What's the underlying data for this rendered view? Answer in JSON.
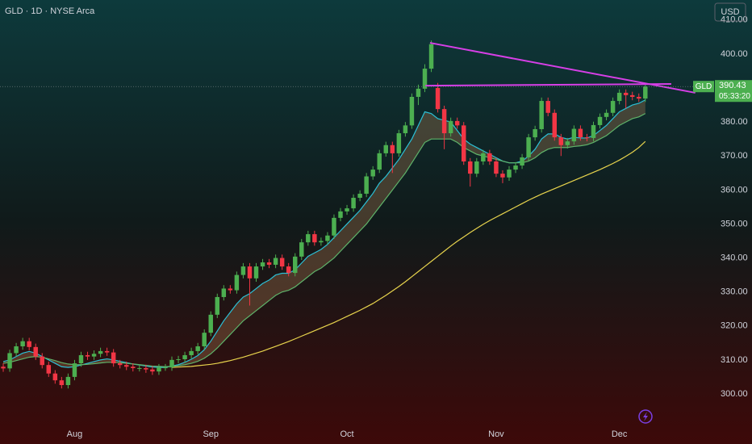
{
  "chart_data": {
    "type": "candlestick",
    "title": "GLD · 1D · NYSE Arca",
    "currency": "USD",
    "symbol_tag": "GLD",
    "countdown": "05:33:20",
    "categories": [
      null,
      null,
      null,
      null,
      null,
      null,
      null,
      null,
      null,
      null,
      null,
      "Aug",
      null,
      null,
      null,
      null,
      null,
      null,
      null,
      null,
      null,
      null,
      null,
      null,
      null,
      null,
      null,
      null,
      null,
      null,
      null,
      null,
      "Sep",
      null,
      null,
      null,
      null,
      null,
      null,
      null,
      null,
      null,
      null,
      null,
      null,
      null,
      null,
      null,
      null,
      null,
      null,
      null,
      null,
      "Oct",
      null,
      null,
      null,
      null,
      null,
      null,
      null,
      null,
      null,
      null,
      null,
      null,
      null,
      null,
      null,
      null,
      null,
      null,
      null,
      null,
      null,
      null,
      "Nov",
      null,
      null,
      null,
      null,
      null,
      null,
      null,
      null,
      null,
      null,
      null,
      null,
      null,
      null,
      null,
      null,
      null,
      null,
      "Dec",
      null,
      null,
      null,
      null
    ],
    "open": [
      308,
      307.5,
      312,
      314,
      315.5,
      313.8,
      311,
      308.5,
      306,
      304,
      302.6,
      305,
      309,
      311.4,
      311,
      311.8,
      312.6,
      312.2,
      309,
      308.5,
      308,
      307.6,
      307.6,
      307.2,
      306.6,
      307.8,
      307.8,
      310,
      310.2,
      311.4,
      312.6,
      314,
      318,
      323.3,
      328.5,
      331,
      330.5,
      335,
      337.5,
      334,
      337.5,
      338.7,
      338,
      340,
      337.5,
      335.6,
      340.4,
      344.6,
      347,
      344.6,
      345,
      346.6,
      351.8,
      353.7,
      354.6,
      357.7,
      358.9,
      364,
      366,
      370.8,
      373.2,
      370.8,
      376.7,
      379,
      387.4,
      389.8,
      395.7,
      390,
      383.8,
      376.7,
      380.3,
      379,
      368.4,
      364.8,
      368.4,
      370.8,
      368.4,
      364.8,
      363.7,
      366,
      367.2,
      369.6,
      375.5,
      377.9,
      386.2,
      382.7,
      375.5,
      373.2,
      374.3,
      378,
      375.5,
      375.3,
      379.1,
      381.5,
      382.7,
      386.2,
      388.6,
      387.9,
      387.4,
      386.9
    ],
    "high": [
      309,
      313,
      315,
      316.5,
      316.5,
      314.8,
      312,
      309.5,
      307,
      305,
      306,
      310,
      312.4,
      312.4,
      312.8,
      313.6,
      313.6,
      313.2,
      310,
      309.5,
      309,
      308.6,
      308.6,
      308.2,
      308.8,
      308.8,
      311,
      311.2,
      312.4,
      313.6,
      315,
      319,
      324.3,
      329.5,
      332,
      332,
      336,
      338.5,
      338.5,
      338.5,
      339.7,
      339.7,
      341,
      341,
      338.5,
      341.4,
      345.6,
      348,
      348,
      346,
      347.6,
      352.8,
      354.7,
      355.6,
      358.7,
      359.9,
      365,
      367,
      371.8,
      374.2,
      374.2,
      377.7,
      380,
      388.4,
      391,
      397,
      404,
      391.5,
      384.8,
      381.3,
      381.3,
      380,
      369.4,
      369.4,
      371.8,
      371.8,
      369.4,
      365.8,
      367,
      368.2,
      370.6,
      376.5,
      378.9,
      387.2,
      387.2,
      383.7,
      376.5,
      375.3,
      379,
      379,
      376.5,
      380.1,
      382.5,
      383.7,
      387.2,
      389.6,
      389.6,
      388.9,
      388.4,
      390.9
    ],
    "low": [
      306.5,
      306.5,
      311,
      313,
      312.8,
      310,
      307.5,
      305,
      303,
      301.6,
      301.6,
      304,
      308,
      310,
      310,
      310.8,
      311.2,
      308,
      307.5,
      307,
      306.6,
      306.6,
      306.2,
      305.6,
      305.6,
      306.8,
      306.8,
      309,
      309.2,
      310.4,
      311.6,
      313,
      317,
      322.3,
      327.5,
      329.5,
      329.5,
      334,
      326,
      333,
      336.5,
      337,
      337,
      336.5,
      334.6,
      334.6,
      339.4,
      343.6,
      343.6,
      343.6,
      344,
      345.6,
      350.8,
      352.7,
      353.6,
      356.7,
      357.9,
      363,
      365,
      369.8,
      365,
      369.8,
      375.7,
      378,
      385,
      388.8,
      394.7,
      382.8,
      372,
      375.7,
      378,
      367.4,
      361,
      363.8,
      367.4,
      367.4,
      363.8,
      362,
      362.7,
      365,
      366.2,
      368.6,
      374.5,
      376.9,
      381.7,
      374.5,
      370,
      372.2,
      373.3,
      374.5,
      374.3,
      374.3,
      378.1,
      380.5,
      381.7,
      385.2,
      384,
      386.4,
      385.9,
      385.9
    ],
    "close": [
      307.5,
      312,
      314,
      315.5,
      313.8,
      311,
      308.5,
      306,
      304,
      302.6,
      305,
      309,
      311.4,
      311,
      311.8,
      312.6,
      312.2,
      309,
      308.5,
      308,
      307.6,
      307.6,
      307.2,
      306.6,
      307.8,
      307.8,
      310,
      310.2,
      311.4,
      312.6,
      314,
      318,
      323.3,
      328.5,
      331,
      330.5,
      335,
      337.5,
      334,
      337.5,
      338.7,
      338,
      340,
      337.5,
      335.6,
      340.4,
      344.6,
      347,
      344.6,
      345,
      346.6,
      351.8,
      353.7,
      354.6,
      357.7,
      358.9,
      364,
      366,
      370.8,
      373.2,
      370.8,
      376.7,
      379,
      387.4,
      389.8,
      395.7,
      402.9,
      383.8,
      376.7,
      380.3,
      379,
      368.4,
      364.8,
      368.4,
      370.8,
      368.4,
      364.8,
      363.7,
      366,
      367.2,
      369.6,
      375.5,
      377.9,
      386.2,
      382.7,
      375.5,
      373.2,
      374.3,
      378,
      375.5,
      375.3,
      379.1,
      381.5,
      382.7,
      386.2,
      388.6,
      387.9,
      387.4,
      386.9,
      390.43
    ],
    "up_color": "#4caf50",
    "down_color": "#f23645",
    "lines": [
      {
        "color": "#2bc0d6",
        "values": [
          309.5,
          310,
          311,
          312,
          312.5,
          312,
          311,
          310,
          309,
          308,
          307.8,
          308,
          308.5,
          309,
          309.5,
          310,
          310.3,
          310,
          309.6,
          309.2,
          308.8,
          308.5,
          308.2,
          307.9,
          307.8,
          307.8,
          308.2,
          308.6,
          309.3,
          310.2,
          311.3,
          313,
          315.5,
          318.5,
          321.5,
          324,
          326.5,
          328.5,
          329.5,
          331,
          332.5,
          333.5,
          335,
          335.5,
          335.5,
          336.5,
          338.5,
          340.5,
          341.5,
          342.5,
          344,
          346,
          348,
          350,
          352,
          354,
          356.5,
          359,
          362,
          364,
          366.5,
          369,
          372,
          375,
          379,
          383,
          382.5,
          381,
          380.5,
          380,
          377.5,
          375,
          373.5,
          372.5,
          371.5,
          370.5,
          369.5,
          368.5,
          368,
          368,
          368.5,
          370,
          372,
          375,
          376.5,
          376.5,
          375.5,
          375,
          375.5,
          375.3,
          375.3,
          376,
          377.5,
          379,
          381,
          383,
          384,
          385,
          385.5,
          386.5
        ]
      },
      {
        "color": "#5fb36a",
        "values": [
          309,
          309.3,
          309.8,
          310.3,
          310.8,
          311,
          310.8,
          310.3,
          309.8,
          309.2,
          308.8,
          308.6,
          308.6,
          308.7,
          308.9,
          309.1,
          309.3,
          309.3,
          309.2,
          309,
          308.8,
          308.6,
          308.4,
          308.2,
          308.1,
          308,
          308.1,
          308.3,
          308.6,
          309,
          309.6,
          310.5,
          311.8,
          313.5,
          315.5,
          317.5,
          319.5,
          321.5,
          323,
          324.5,
          326,
          327.5,
          329,
          330,
          330.5,
          331.5,
          333,
          334.5,
          336,
          337,
          338.5,
          340,
          342,
          344,
          346,
          348,
          350,
          352.5,
          355,
          357.5,
          360,
          362.5,
          365,
          368,
          371,
          374,
          375,
          375,
          375,
          375,
          374,
          372.5,
          371.5,
          370.5,
          370,
          369.5,
          369,
          368.5,
          368,
          368,
          368,
          368.5,
          369.5,
          371,
          372,
          372.5,
          372.5,
          372.5,
          372.8,
          373,
          373.3,
          374,
          375,
          376,
          377.5,
          379,
          380,
          381,
          381.5,
          382.5
        ]
      },
      {
        "color": "#e8d44d",
        "values": [
          null,
          null,
          null,
          null,
          null,
          null,
          null,
          null,
          null,
          null,
          null,
          null,
          null,
          null,
          null,
          null,
          null,
          null,
          null,
          null,
          null,
          null,
          null,
          null,
          null,
          null,
          307.8,
          307.9,
          308,
          308.1,
          308.3,
          308.5,
          308.7,
          309,
          309.4,
          309.8,
          310.3,
          310.8,
          311.4,
          312,
          312.6,
          313.3,
          314,
          314.7,
          315.4,
          316.2,
          317,
          317.8,
          318.6,
          319.4,
          320.2,
          321,
          321.9,
          322.8,
          323.7,
          324.6,
          325.6,
          326.6,
          327.8,
          329,
          330.3,
          331.6,
          333,
          334.5,
          336,
          337.5,
          339,
          340.5,
          342,
          343.5,
          344.9,
          346.2,
          347.5,
          348.7,
          349.9,
          351,
          352,
          353,
          354,
          355,
          356,
          357,
          357.9,
          358.8,
          359.6,
          360.4,
          361.2,
          362,
          362.8,
          363.6,
          364.4,
          365.2,
          366,
          366.9,
          367.8,
          368.8,
          369.9,
          371.1,
          372.5,
          374.3
        ]
      }
    ],
    "band": {
      "between": [
        0,
        1
      ],
      "color": "rgba(170,120,80,0.35)"
    },
    "trendlines": [
      {
        "from": [
          65.8,
          403.3
        ],
        "to": [
          106.7,
          388.6
        ],
        "color": "#d63fe6"
      },
      {
        "from": [
          65.1,
          390.7
        ],
        "to": [
          103,
          391.2
        ],
        "color": "#d63fe6"
      }
    ],
    "xlim": [
      -0.5,
      109.6
    ],
    "ylim": [
      291.2,
      415.9
    ],
    "yticks": [
      {
        "value": 300,
        "label": "300.00"
      },
      {
        "value": 310,
        "label": "310.00"
      },
      {
        "value": 320,
        "label": "320.00"
      },
      {
        "value": 330,
        "label": "330.00"
      },
      {
        "value": 340,
        "label": "340.00"
      },
      {
        "value": 350,
        "label": "350.00"
      },
      {
        "value": 360,
        "label": "360.00"
      },
      {
        "value": 370,
        "label": "370.00"
      },
      {
        "value": 380,
        "label": "380.00"
      },
      {
        "value": 390,
        "label": "390.00"
      },
      {
        "value": 400,
        "label": "400.00"
      },
      {
        "value": 410,
        "label": "410.00"
      }
    ]
  }
}
